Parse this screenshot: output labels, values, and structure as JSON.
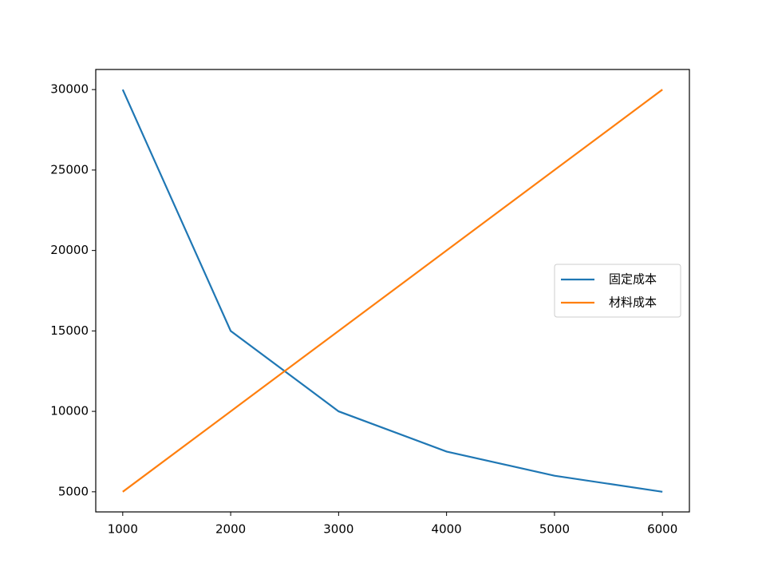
{
  "chart_data": {
    "type": "line",
    "x": [
      1000,
      2000,
      3000,
      4000,
      5000,
      6000
    ],
    "series": [
      {
        "name": "固定成本",
        "color": "#1f77b4",
        "values": [
          30000,
          15000,
          10000,
          7500,
          6000,
          5000
        ]
      },
      {
        "name": "材料成本",
        "color": "#ff7f0e",
        "values": [
          5000,
          10000,
          15000,
          20000,
          25000,
          30000
        ]
      }
    ],
    "xlim": [
      750,
      6250
    ],
    "xticks": [
      1000,
      2000,
      3000,
      4000,
      5000,
      6000
    ],
    "ylim": [
      3750,
      31250
    ],
    "yticks": [
      5000,
      10000,
      15000,
      20000,
      25000,
      30000
    ],
    "grid": false,
    "legend": "center right"
  }
}
